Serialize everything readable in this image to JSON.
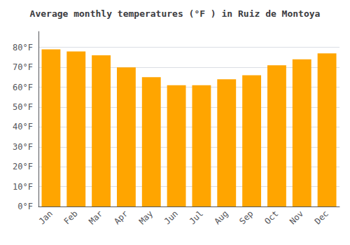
{
  "chart_data": {
    "type": "bar",
    "title": "Average monthly temperatures (°F ) in Ruiz de Montoya",
    "categories": [
      "Jan",
      "Feb",
      "Mar",
      "Apr",
      "May",
      "Jun",
      "Jul",
      "Aug",
      "Sep",
      "Oct",
      "Nov",
      "Dec"
    ],
    "values": [
      79,
      78,
      76,
      70,
      65,
      61,
      61,
      64,
      66,
      71,
      74,
      77
    ],
    "color": "#FFA500",
    "ylim": [
      0,
      88
    ],
    "yticks": [
      {
        "value": 0,
        "label": "0°F"
      },
      {
        "value": 10,
        "label": "10°F"
      },
      {
        "value": 20,
        "label": "20°F"
      },
      {
        "value": 30,
        "label": "30°F"
      },
      {
        "value": 40,
        "label": "40°F"
      },
      {
        "value": 50,
        "label": "50°F"
      },
      {
        "value": 60,
        "label": "60°F"
      },
      {
        "value": 70,
        "label": "70°F"
      },
      {
        "value": 80,
        "label": "80°F"
      }
    ],
    "grid": true
  }
}
